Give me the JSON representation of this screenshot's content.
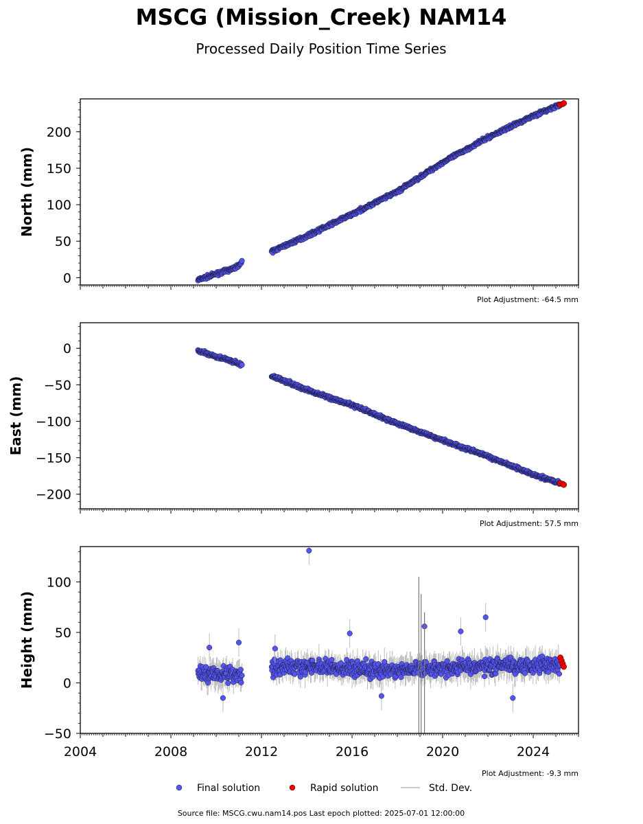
{
  "title": "MSCG (Mission_Creek) NAM14",
  "subtitle": "Processed Daily Position Time Series",
  "footer": "Source file: MSCG.cwu.nam14.pos  Last epoch plotted: 2025-07-01 12:00:00",
  "colors": {
    "final": "#5555ee",
    "rapid": "#ee0000",
    "std": "#bbbbbb"
  },
  "legend": {
    "final": "Final solution",
    "rapid": "Rapid solution",
    "std": "Std. Dev."
  },
  "chart_data": [
    {
      "type": "scatter",
      "ylabel": "North (mm)",
      "adjustment": "Plot Adjustment: -64.5 mm",
      "xlim": [
        2004,
        2026
      ],
      "ylim": [
        -10,
        245
      ],
      "yticks": [
        0,
        50,
        100,
        150,
        200
      ],
      "segments": [
        {
          "x": [
            2009.2,
            2010.0,
            2010.8,
            2011.15
          ],
          "y": [
            -3,
            5,
            13,
            21
          ]
        },
        {
          "x": [
            2012.45,
            2014.0,
            2016.0,
            2018.0,
            2020.0,
            2022.0,
            2024.0,
            2025.2
          ],
          "y": [
            36,
            57,
            87,
            118,
            158,
            192,
            222,
            237
          ]
        }
      ],
      "rapid": {
        "x": [
          2025.2,
          2025.3,
          2025.35
        ],
        "y": [
          237,
          238,
          239
        ]
      },
      "noise": 2.5
    },
    {
      "type": "scatter",
      "ylabel": "East (mm)",
      "adjustment": "Plot Adjustment: 57.5 mm",
      "xlim": [
        2004,
        2026
      ],
      "ylim": [
        -220,
        35
      ],
      "yticks": [
        -200,
        -150,
        -100,
        -50,
        0
      ],
      "segments": [
        {
          "x": [
            2009.2,
            2010.0,
            2010.8,
            2011.15
          ],
          "y": [
            -4,
            -11,
            -19,
            -23
          ]
        },
        {
          "x": [
            2012.45,
            2014.0,
            2016.0,
            2018.0,
            2020.0,
            2022.0,
            2024.0,
            2025.2
          ],
          "y": [
            -38,
            -57,
            -78,
            -103,
            -126,
            -148,
            -173,
            -185
          ]
        }
      ],
      "rapid": {
        "x": [
          2025.2,
          2025.3,
          2025.35
        ],
        "y": [
          -185,
          -186,
          -187
        ]
      },
      "noise": 2.5
    },
    {
      "type": "scatter",
      "ylabel": "Height (mm)",
      "adjustment": "Plot Adjustment: -9.3 mm",
      "xlim": [
        2004,
        2026
      ],
      "ylim": [
        -50,
        135
      ],
      "yticks": [
        -50,
        0,
        50,
        100
      ],
      "segments": [
        {
          "x": [
            2009.2,
            2010.0,
            2011.15
          ],
          "y": [
            8,
            10,
            8
          ]
        },
        {
          "x": [
            2012.45,
            2014.0,
            2016.0,
            2018.0,
            2020.0,
            2022.0,
            2024.0,
            2025.2
          ],
          "y": [
            16,
            16,
            14,
            12,
            15,
            17,
            18,
            19
          ]
        }
      ],
      "rapid": {
        "x": [
          2025.2,
          2025.25,
          2025.3,
          2025.35
        ],
        "y": [
          25,
          22,
          19,
          16
        ]
      },
      "outliers": {
        "x": [
          2014.1,
          2019.2,
          2020.8,
          2021.9,
          2015.9,
          2023.1,
          2009.7,
          2011.0,
          2012.6,
          2010.3,
          2017.3
        ],
        "y": [
          131,
          56,
          51,
          65,
          49,
          -15,
          35,
          40,
          34,
          -15,
          -13
        ]
      },
      "noise": 9
    }
  ],
  "xticks": [
    2004,
    2008,
    2012,
    2016,
    2020,
    2024
  ]
}
